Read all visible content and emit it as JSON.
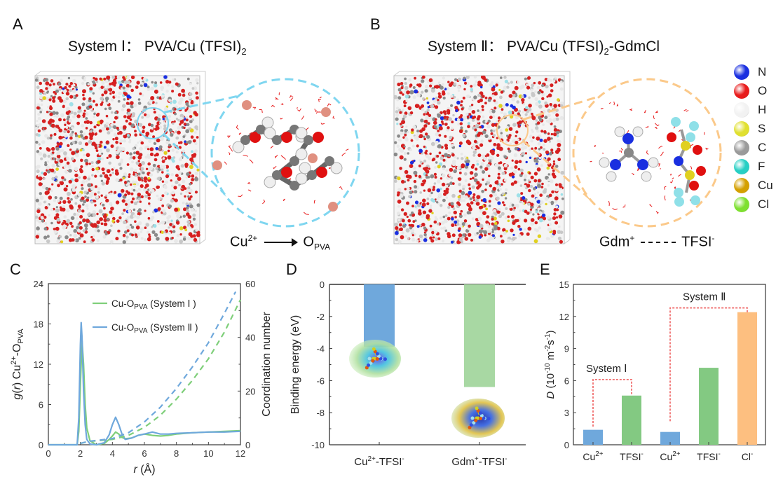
{
  "panels": {
    "A": {
      "letter": "A",
      "title_prefix": "System Ⅰ： PVA/Cu (TFSI)",
      "title_sub": "2",
      "caption_left": "Cu",
      "caption_left_sup": "2+",
      "caption_right": "O",
      "caption_right_sub": "PVA",
      "zoom_color": "#7fd6f0"
    },
    "B": {
      "letter": "B",
      "title_prefix": "System Ⅱ： PVA/Cu (TFSI)",
      "title_sub": "2",
      "title_suffix": "-GdmCl",
      "caption_left": "Gdm",
      "caption_left_sup": "+",
      "caption_right": "TFSI",
      "caption_right_sup": "-",
      "zoom_color": "#fbc98a"
    },
    "C": {
      "letter": "C"
    },
    "D": {
      "letter": "D"
    },
    "E": {
      "letter": "E"
    }
  },
  "atom_legend": [
    {
      "symbol": "N",
      "color": "#1a2fe0"
    },
    {
      "symbol": "O",
      "color": "#e81c1c"
    },
    {
      "symbol": "H",
      "color": "#f2f2f2"
    },
    {
      "symbol": "S",
      "color": "#e0e030"
    },
    {
      "symbol": "C",
      "color": "#9a9a9a"
    },
    {
      "symbol": "F",
      "color": "#27cfc4"
    },
    {
      "symbol": "Cu",
      "color": "#d4a000"
    },
    {
      "symbol": "Cl",
      "color": "#7ee030"
    }
  ],
  "chart_data": [
    {
      "id": "C",
      "type": "line",
      "xlabel": "r (Å)",
      "ylabel": "g(r) Cu2+-O_PVA",
      "ylabel_right": "Coordination number",
      "xlim": [
        0,
        12
      ],
      "ylim": [
        0,
        24
      ],
      "ylim_right": [
        0,
        60
      ],
      "xticks": [
        0,
        2,
        4,
        6,
        8,
        10,
        12
      ],
      "yticks": [
        0,
        6,
        12,
        18,
        24
      ],
      "yticks_right": [
        0,
        20,
        40,
        60
      ],
      "legend_position": "top-center",
      "series": [
        {
          "name": "Cu-O_PVA (System Ⅰ)",
          "axis": "left",
          "style": "solid",
          "color": "#7fcf7a",
          "x": [
            0,
            1.8,
            1.9,
            2.0,
            2.1,
            2.2,
            2.3,
            2.4,
            2.6,
            3.0,
            3.5,
            3.8,
            4.0,
            4.2,
            4.4,
            4.6,
            4.8,
            5.2,
            5.6,
            6.0,
            6.5,
            7.0,
            7.5,
            8.0,
            9.0,
            10.0,
            11.0,
            12.0
          ],
          "y": [
            0,
            0,
            2,
            9,
            15.5,
            12,
            6,
            2.5,
            0.6,
            0,
            0.2,
            0.8,
            1.3,
            1.9,
            1.6,
            1.1,
            0.9,
            1.0,
            1.4,
            1.6,
            1.4,
            1.3,
            1.4,
            1.6,
            1.8,
            1.9,
            2.0,
            2.1
          ]
        },
        {
          "name": "Cu-O_PVA (System Ⅱ)",
          "axis": "left",
          "style": "solid",
          "color": "#6fa8dc",
          "x": [
            0,
            1.8,
            1.9,
            2.0,
            2.05,
            2.1,
            2.2,
            2.3,
            2.4,
            2.6,
            3.0,
            3.5,
            3.8,
            4.0,
            4.2,
            4.4,
            4.6,
            4.8,
            5.2,
            5.6,
            6.0,
            6.5,
            7.0,
            7.5,
            8.0,
            9.0,
            10.0,
            11.0,
            12.0
          ],
          "y": [
            0,
            0,
            4,
            15,
            18.2,
            16,
            8,
            3,
            0.8,
            0.1,
            0,
            0.3,
            1.5,
            3.0,
            4.1,
            3.0,
            1.6,
            0.8,
            1.0,
            1.4,
            1.6,
            1.9,
            1.6,
            1.6,
            1.7,
            1.8,
            1.9,
            1.9,
            2.0
          ]
        },
        {
          "name": "CN System Ⅰ",
          "axis": "right",
          "style": "dashed",
          "color": "#7fcf7a",
          "x": [
            2.0,
            2.5,
            3.0,
            4.0,
            5.0,
            6.0,
            7.0,
            8.0,
            9.0,
            10.0,
            11.0,
            12.0
          ],
          "y": [
            0.5,
            1.2,
            1.5,
            2.0,
            3.5,
            6.5,
            11,
            17,
            24,
            32,
            42,
            54
          ]
        },
        {
          "name": "CN System Ⅱ",
          "axis": "right",
          "style": "dashed",
          "color": "#6fa8dc",
          "x": [
            2.0,
            2.5,
            3.0,
            4.0,
            5.0,
            6.0,
            7.0,
            8.0,
            9.0,
            10.0,
            11.0,
            11.7
          ],
          "y": [
            0.5,
            1.3,
            1.6,
            2.3,
            4.5,
            8.5,
            14,
            21,
            29,
            38,
            49,
            57
          ]
        }
      ]
    },
    {
      "id": "D",
      "type": "bar",
      "ylabel": "Binding energy (eV)",
      "categories": [
        "Cu2+-TFSI-",
        "Gdm+-TFSI-"
      ],
      "category_labels": [
        {
          "base": "Cu",
          "sup1": "2+",
          "mid": "-TFSI",
          "sup2": "-"
        },
        {
          "base": "Gdm",
          "sup1": "+",
          "mid": "-TFSI",
          "sup2": "-"
        }
      ],
      "values": [
        -3.9,
        -6.4
      ],
      "colors": [
        "#6fa8dc",
        "#a8d8a3"
      ],
      "ylim": [
        -10,
        0
      ],
      "yticks": [
        0,
        -2,
        -4,
        -6,
        -8,
        -10
      ]
    },
    {
      "id": "E",
      "type": "bar",
      "ylabel": "D (10^-10 m^-2 s^-1)",
      "categories": [
        "Cu2+",
        "TFSI-",
        "Cu2+",
        "TFSI-",
        "Cl-"
      ],
      "category_labels": [
        {
          "base": "Cu",
          "sup": "2+"
        },
        {
          "base": "TFSI",
          "sup": "-"
        },
        {
          "base": "Cu",
          "sup": "2+"
        },
        {
          "base": "TFSI",
          "sup": "-"
        },
        {
          "base": "Cl",
          "sup": "-"
        }
      ],
      "values": [
        1.4,
        4.6,
        1.2,
        7.2,
        12.4
      ],
      "colors": [
        "#6fa8dc",
        "#83c982",
        "#6fa8dc",
        "#83c982",
        "#fdbf80"
      ],
      "ylim": [
        0,
        15
      ],
      "yticks": [
        0,
        3,
        6,
        9,
        12,
        15
      ],
      "annotations": [
        {
          "text": "System Ⅰ",
          "groups": [
            0,
            1
          ],
          "bracket_y": 6.1
        },
        {
          "text": "System Ⅱ",
          "groups": [
            2,
            4
          ],
          "bracket_y": 12.8
        }
      ]
    }
  ]
}
